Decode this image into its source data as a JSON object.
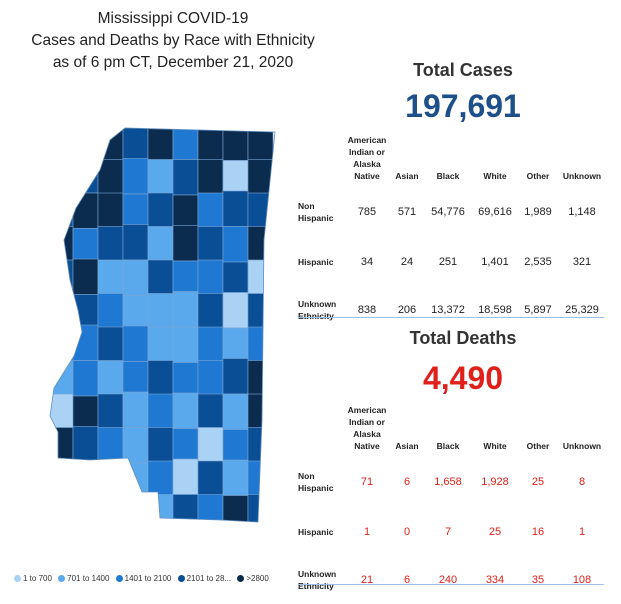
{
  "title": {
    "line1": "Mississippi COVID-19",
    "line2": "Cases and Deaths by Race with Ethnicity",
    "line3": "as of 6 pm CT, December 21, 2020"
  },
  "columns": [
    "American Indian or Alaska Native",
    "Asian",
    "Black",
    "White",
    "Other",
    "Unknown"
  ],
  "column_lines": {
    "ai1": "American",
    "ai2": "Indian or",
    "ai3": "Alaska Native"
  },
  "cases": {
    "label": "Total Cases",
    "total": "197,691",
    "rows": [
      {
        "label1": "Non",
        "label2": "Hispanic",
        "values": [
          "785",
          "571",
          "54,776",
          "69,616",
          "1,989",
          "1,148"
        ]
      },
      {
        "label1": "Hispanic",
        "label2": "",
        "values": [
          "34",
          "24",
          "251",
          "1,401",
          "2,535",
          "321"
        ]
      },
      {
        "label1": "Unknown",
        "label2": "Ethnicity",
        "values": [
          "838",
          "206",
          "13,372",
          "18,598",
          "5,897",
          "25,329"
        ]
      }
    ]
  },
  "deaths": {
    "label": "Total Deaths",
    "total": "4,490",
    "rows": [
      {
        "label1": "Non",
        "label2": "Hispanic",
        "values": [
          "71",
          "6",
          "1,658",
          "1,928",
          "25",
          "8"
        ]
      },
      {
        "label1": "Hispanic",
        "label2": "",
        "values": [
          "1",
          "0",
          "7",
          "25",
          "16",
          "1"
        ]
      },
      {
        "label1": "Unknown",
        "label2": "Ethnicity",
        "values": [
          "21",
          "6",
          "240",
          "334",
          "35",
          "108"
        ]
      }
    ]
  },
  "legend": [
    {
      "label": "1 to 700",
      "color": "#a9d2f5"
    },
    {
      "label": "701 to 1400",
      "color": "#5aa9ec"
    },
    {
      "label": "1401 to 2100",
      "color": "#1f78d1"
    },
    {
      "label": "2101 to 28...",
      "color": "#0a4e96"
    },
    {
      "label": ">2800",
      "color": "#0b2c4f"
    }
  ],
  "colors": {
    "cases_total": "#1d4f8a",
    "deaths_total": "#e0201a",
    "divider": "#9cbfe3"
  }
}
